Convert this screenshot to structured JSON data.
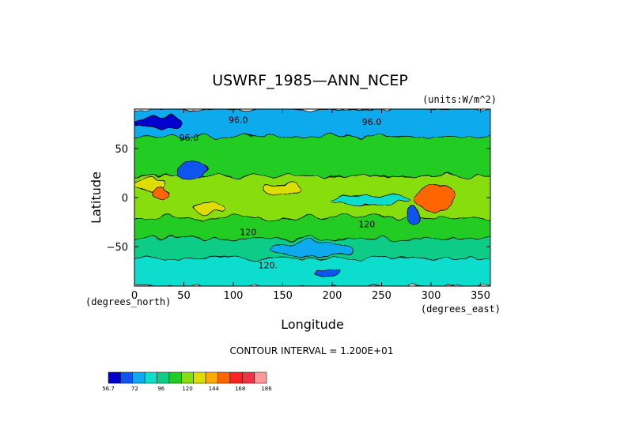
{
  "chart_data": {
    "type": "heatmap",
    "title": "USWRF_1985—ANN_NCEP",
    "units": "(units:W/m^2)",
    "xlabel": "Longitude",
    "ylabel": "Latitude",
    "x_unit_label": "(degrees_east)",
    "y_unit_label": "(degrees_north)",
    "xlim": [
      0,
      360
    ],
    "ylim": [
      -90,
      90
    ],
    "x_ticks": [
      {
        "value": 0,
        "label": "0"
      },
      {
        "value": 50,
        "label": "50"
      },
      {
        "value": 100,
        "label": "100"
      },
      {
        "value": 150,
        "label": "150"
      },
      {
        "value": 200,
        "label": "200"
      },
      {
        "value": 250,
        "label": "250"
      },
      {
        "value": 300,
        "label": "300"
      },
      {
        "value": 350,
        "label": "350"
      }
    ],
    "y_ticks": [
      {
        "value": 50,
        "label": "50"
      },
      {
        "value": 0,
        "label": "0"
      },
      {
        "value": -50,
        "label": "−50"
      }
    ],
    "contour_interval_text": "CONTOUR INTERVAL = 1.200E+01",
    "contour_labels": [
      {
        "lon": 105,
        "lat": 76,
        "text": "96.0"
      },
      {
        "lon": 55,
        "lat": 58,
        "text": "96.0"
      },
      {
        "lon": 240,
        "lat": 74,
        "text": "96.0"
      },
      {
        "lon": 115,
        "lat": -38,
        "text": "120"
      },
      {
        "lon": 135,
        "lat": -72,
        "text": "120."
      },
      {
        "lon": 235,
        "lat": -30,
        "text": "120"
      }
    ],
    "colorbar": {
      "tick_labels": [
        "56.7",
        "72",
        "96",
        "120",
        "144",
        "168",
        "186"
      ],
      "colors": [
        "#0000cc",
        "#1155ee",
        "#11aaee",
        "#11ddcc",
        "#11cc88",
        "#22cc22",
        "#88dd11",
        "#dddd00",
        "#ffaa00",
        "#ff6600",
        "#ff2222",
        "#ee3344",
        "#ff9999"
      ]
    },
    "regions": [
      {
        "name": "arctic-ocean",
        "color": "#11aaee",
        "lon": [
          0,
          360
        ],
        "lat": [
          62,
          90
        ]
      },
      {
        "name": "northern-midlatitudes",
        "color": "#22cc22",
        "lon": [
          0,
          360
        ],
        "lat": [
          22,
          62
        ]
      },
      {
        "name": "tropics",
        "color": "#88dd11",
        "lon": [
          0,
          360
        ],
        "lat": [
          -20,
          22
        ]
      },
      {
        "name": "southern-midlatitudes",
        "color": "#22cc22",
        "lon": [
          0,
          360
        ],
        "lat": [
          -42,
          -20
        ]
      },
      {
        "name": "southern-ocean",
        "color": "#11cc88",
        "lon": [
          0,
          360
        ],
        "lat": [
          -62,
          -42
        ]
      },
      {
        "name": "antarctica",
        "color": "#11ddcc",
        "lon": [
          0,
          360
        ],
        "lat": [
          -90,
          -62
        ]
      },
      {
        "name": "greenland",
        "color": "#0000cc",
        "lon": [
          2,
          48
        ],
        "lat": [
          70,
          82
        ]
      },
      {
        "name": "sahara",
        "color": "#dddd00",
        "lon": [
          0,
          32
        ],
        "lat": [
          6,
          20
        ]
      },
      {
        "name": "sahara-core",
        "color": "#ff6600",
        "lon": [
          18,
          36
        ],
        "lat": [
          0,
          10
        ]
      },
      {
        "name": "tibet",
        "color": "#1155ee",
        "lon": [
          42,
          72
        ],
        "lat": [
          20,
          36
        ]
      },
      {
        "name": "indian-ocean",
        "color": "#dddd00",
        "lon": [
          130,
          170
        ],
        "lat": [
          3,
          13
        ]
      },
      {
        "name": "australia",
        "color": "#dddd00",
        "lon": [
          60,
          90
        ],
        "lat": [
          -15,
          -4
        ]
      },
      {
        "name": "equatorial-pacific",
        "color": "#11ddcc",
        "lon": [
          200,
          280
        ],
        "lat": [
          -6,
          2
        ]
      },
      {
        "name": "south-america",
        "color": "#ff2222",
        "lon": [
          290,
          320
        ],
        "lat": [
          -10,
          6
        ]
      },
      {
        "name": "amazon",
        "color": "#ff6600",
        "lon": [
          285,
          325
        ],
        "lat": [
          -14,
          12
        ]
      },
      {
        "name": "andes",
        "color": "#1155ee",
        "lon": [
          275,
          290
        ],
        "lat": [
          -30,
          -10
        ]
      },
      {
        "name": "southern-pacific",
        "color": "#11aaee",
        "lon": [
          140,
          220
        ],
        "lat": [
          -60,
          -45
        ]
      },
      {
        "name": "antarctic-coast",
        "color": "#1155ee",
        "lon": [
          180,
          210
        ],
        "lat": [
          -80,
          -72
        ]
      }
    ]
  }
}
